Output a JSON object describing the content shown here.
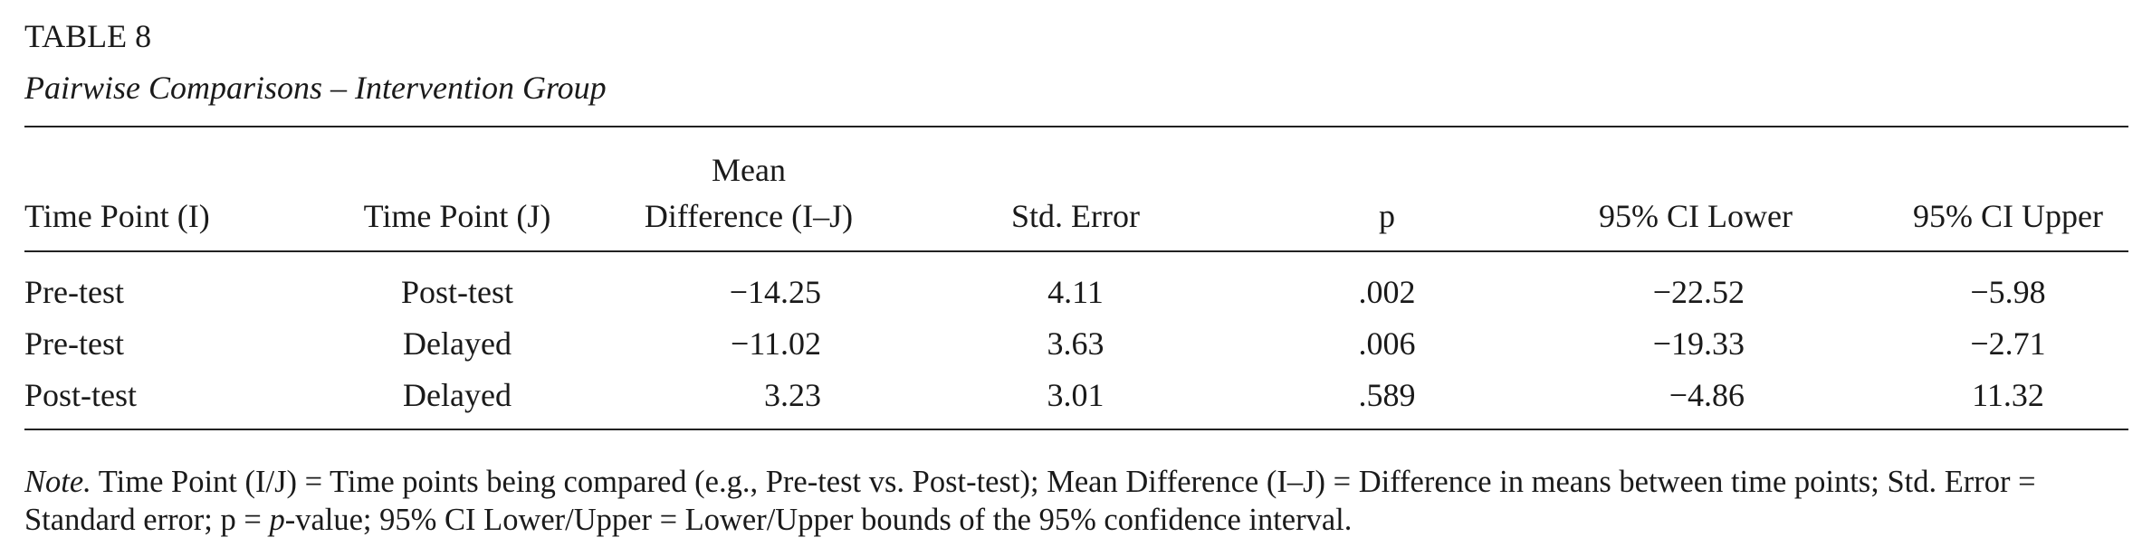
{
  "header": {
    "title": "TABLE 8",
    "subtitle": "Pairwise Comparisons – Intervention Group"
  },
  "table": {
    "columns": [
      [
        "Time Point (I)"
      ],
      [
        "Time Point (J)"
      ],
      [
        "Mean",
        "Difference (I–J)"
      ],
      [
        "Std. Error"
      ],
      [
        "p"
      ],
      [
        "95% CI Lower"
      ],
      [
        "95% CI Upper"
      ]
    ],
    "rows": [
      [
        "Pre-test",
        "Post-test",
        "−14.25",
        "4.11",
        ".002",
        "−22.52",
        "−5.98"
      ],
      [
        "Pre-test",
        "Delayed",
        "−11.02",
        "3.63",
        ".006",
        "−19.33",
        "−2.71"
      ],
      [
        "Post-test",
        "Delayed",
        "3.23",
        "3.01",
        ".589",
        "−4.86",
        "11.32"
      ]
    ]
  },
  "note": {
    "label": "Note.",
    "text_before": " Time Point (I/J) = Time points being compared (e.g., Pre-test vs. Post-test); Mean Difference (I–J) = Difference in means between time points; Std. Error = Standard error; p = ",
    "italic": "p",
    "text_after": "-value; 95% CI Lower/Upper = Lower/Upper bounds of the 95% confidence interval."
  }
}
